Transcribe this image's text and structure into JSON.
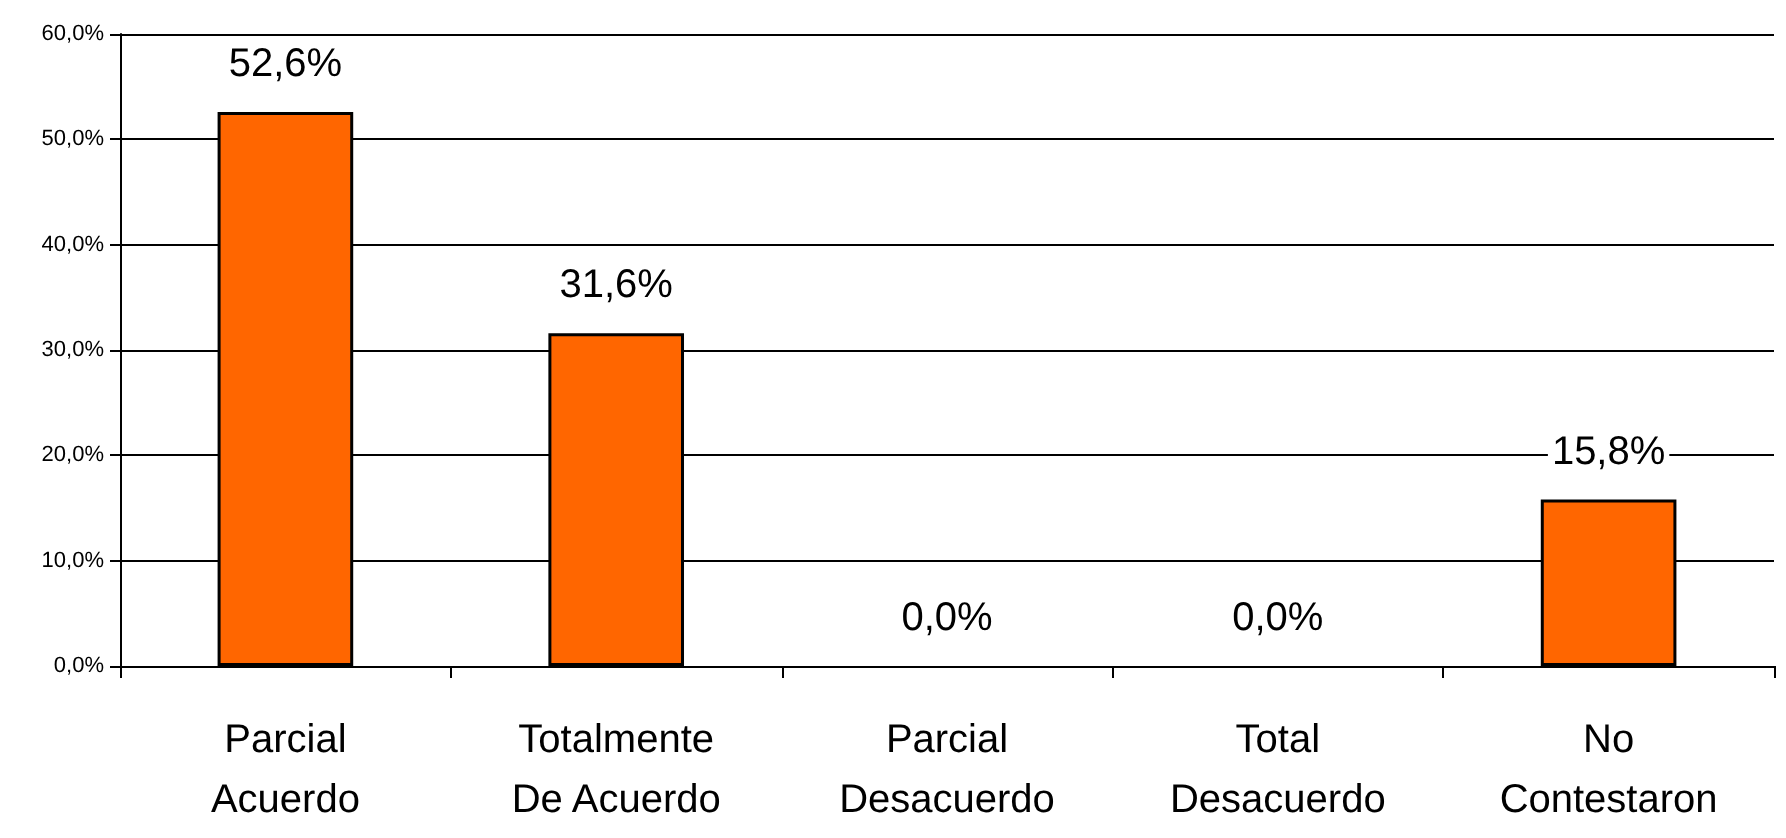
{
  "chart_data": {
    "type": "bar",
    "categories": [
      "Parcial Acuerdo",
      "Totalmente De Acuerdo",
      "Parcial Desacuerdo",
      "Total Desacuerdo",
      "No Contestaron"
    ],
    "values": [
      52.6,
      31.6,
      0,
      0,
      15.8
    ],
    "value_labels": [
      "52,6%",
      "31,6%",
      "0,0%",
      "0,0%",
      "15,8%"
    ],
    "color": "#ff6600",
    "ylim": [
      0,
      60
    ],
    "yticks": [
      {
        "value": 0,
        "label": "0,0%"
      },
      {
        "value": 10,
        "label": "10,0%"
      },
      {
        "value": 20,
        "label": "20,0%"
      },
      {
        "value": 30,
        "label": "30,0%"
      },
      {
        "value": 40,
        "label": "40,0%"
      },
      {
        "value": 50,
        "label": "50,0%"
      },
      {
        "value": 60,
        "label": "60,0%"
      }
    ],
    "grid": "y"
  }
}
